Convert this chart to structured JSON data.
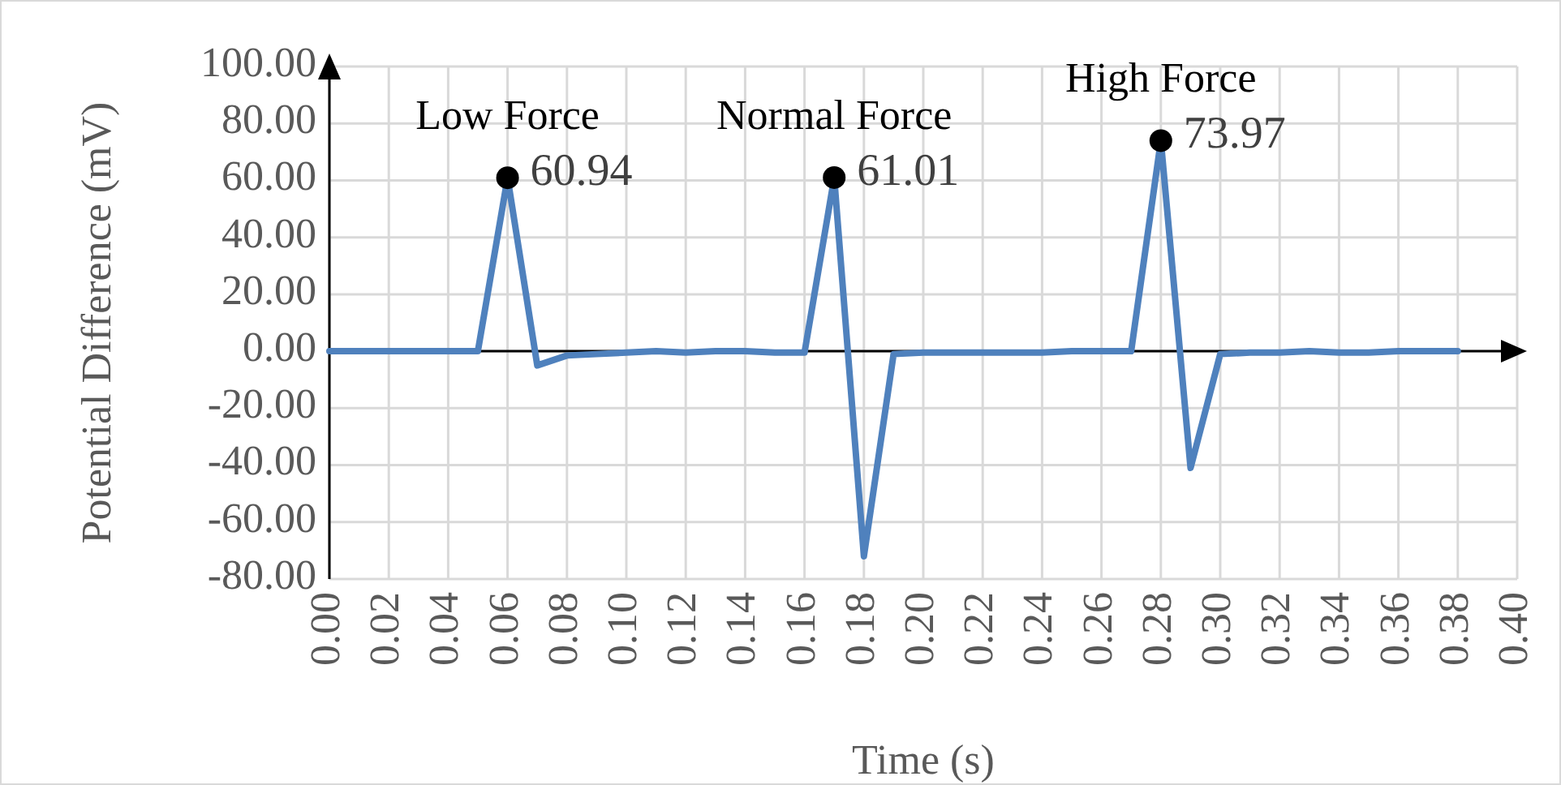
{
  "chart_data": {
    "type": "line",
    "xlabel": "Time (s)",
    "ylabel": "Potential Difference (mV)",
    "xlim": [
      0,
      0.4
    ],
    "xticks": [
      {
        "value": 0,
        "label": "0.00"
      },
      {
        "value": 0.02,
        "label": "0.02"
      },
      {
        "value": 0.04,
        "label": "0.04"
      },
      {
        "value": 0.06,
        "label": "0.06"
      },
      {
        "value": 0.08,
        "label": "0.08"
      },
      {
        "value": 0.1,
        "label": "0.10"
      },
      {
        "value": 0.12,
        "label": "0.12"
      },
      {
        "value": 0.14,
        "label": "0.14"
      },
      {
        "value": 0.16,
        "label": "0.16"
      },
      {
        "value": 0.18,
        "label": "0.18"
      },
      {
        "value": 0.2,
        "label": "0.20"
      },
      {
        "value": 0.22,
        "label": "0.22"
      },
      {
        "value": 0.24,
        "label": "0.24"
      },
      {
        "value": 0.26,
        "label": "0.26"
      },
      {
        "value": 0.28,
        "label": "0.28"
      },
      {
        "value": 0.3,
        "label": "0.30"
      },
      {
        "value": 0.32,
        "label": "0.32"
      },
      {
        "value": 0.34,
        "label": "0.34"
      },
      {
        "value": 0.36,
        "label": "0.36"
      },
      {
        "value": 0.38,
        "label": "0.38"
      },
      {
        "value": 0.4,
        "label": "0.40"
      }
    ],
    "ylim": [
      -80,
      100
    ],
    "yticks": [
      {
        "value": -80,
        "label": "-80.00"
      },
      {
        "value": -60,
        "label": "-60.00"
      },
      {
        "value": -40,
        "label": "-40.00"
      },
      {
        "value": -20,
        "label": "-20.00"
      },
      {
        "value": 0,
        "label": "0.00"
      },
      {
        "value": 20,
        "label": "20.00"
      },
      {
        "value": 40,
        "label": "40.00"
      },
      {
        "value": 60,
        "label": "60.00"
      },
      {
        "value": 80,
        "label": "80.00"
      },
      {
        "value": 100,
        "label": "100.00"
      }
    ],
    "grid": true,
    "series": [
      {
        "color": "#4f81bd",
        "marker": "none",
        "x": [
          0,
          0.01,
          0.02,
          0.03,
          0.04,
          0.05,
          0.06,
          0.07,
          0.08,
          0.09,
          0.1,
          0.11,
          0.12,
          0.13,
          0.14,
          0.15,
          0.16,
          0.17,
          0.18,
          0.19,
          0.2,
          0.21,
          0.22,
          0.23,
          0.24,
          0.25,
          0.26,
          0.27,
          0.28,
          0.29,
          0.3,
          0.31,
          0.32,
          0.33,
          0.34,
          0.35,
          0.36,
          0.37,
          0.38
        ],
        "values": [
          0,
          0,
          0,
          0,
          0,
          0,
          60.94,
          -5,
          -1.5,
          -1,
          -0.5,
          0,
          -0.5,
          0,
          0,
          -0.5,
          -0.5,
          61.01,
          -72,
          -1,
          -0.5,
          -0.5,
          -0.5,
          -0.5,
          -0.5,
          0,
          0,
          0,
          73.97,
          -41,
          -1,
          -0.5,
          -0.5,
          0,
          -0.5,
          -0.5,
          0,
          0,
          0
        ]
      },
      {
        "type": "scatter",
        "color": "#000000",
        "marker": "circle",
        "x": [
          0.06,
          0.17,
          0.28
        ],
        "values": [
          60.94,
          61.01,
          73.97
        ],
        "value_labels": [
          "60.94",
          "61.01",
          "73.97"
        ]
      }
    ],
    "annotations": [
      {
        "text": "Low Force",
        "x": 0.06,
        "y": 60.94
      },
      {
        "text": "Normal Force",
        "x": 0.17,
        "y": 61.01
      },
      {
        "text": "High Force",
        "x": 0.28,
        "y": 73.97
      }
    ]
  }
}
